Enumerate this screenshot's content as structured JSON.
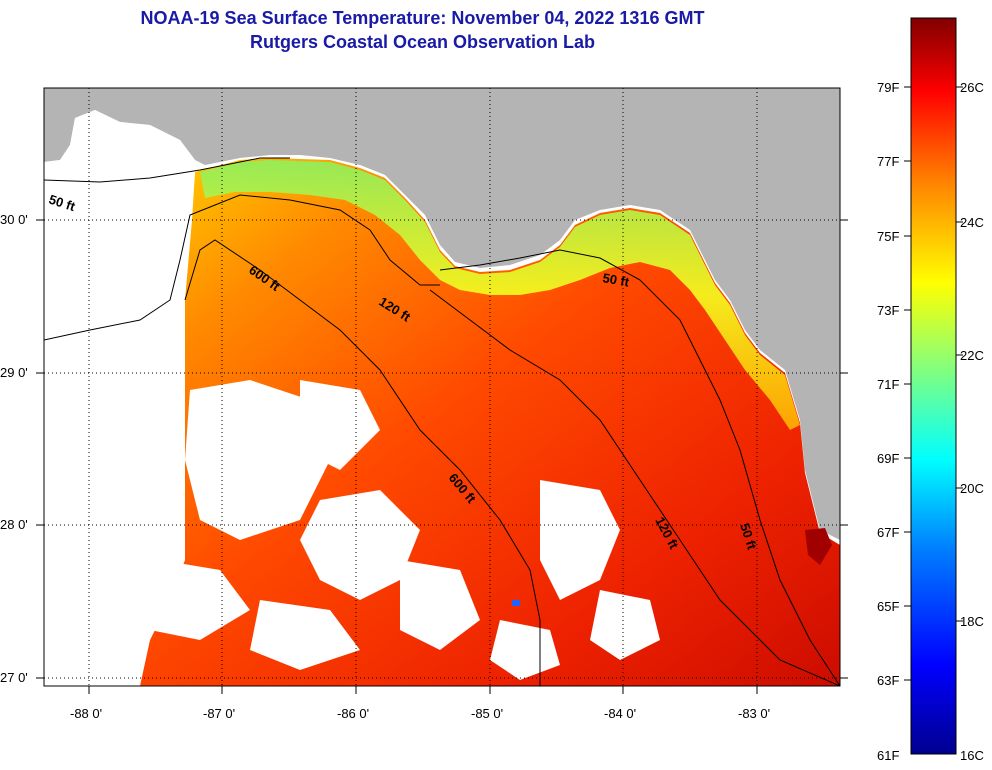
{
  "header": {
    "title": "NOAA-19 Sea Surface Temperature:  November 04, 2022 1316 GMT",
    "subtitle": "Rutgers Coastal Ocean Observation Lab"
  },
  "map": {
    "lon_ticks": [
      "-88 0'",
      "-87 0'",
      "-86 0'",
      "-85 0'",
      "-84 0'",
      "-83 0'"
    ],
    "lat_ticks": [
      "30 0'",
      "29 0'",
      "28 0'",
      "27 0'"
    ],
    "contours": [
      "50 ft",
      "600 ft",
      "120 ft",
      "50 ft",
      "600 ft",
      "120 ft",
      "50 ft"
    ],
    "land_color": "#b4b4b4",
    "nodata_color": "#ffffff"
  },
  "colorbar": {
    "fahrenheit": [
      "79F",
      "77F",
      "75F",
      "73F",
      "71F",
      "69F",
      "67F",
      "65F",
      "63F",
      "61F"
    ],
    "celsius": [
      "26C",
      "24C",
      "22C",
      "20C",
      "18C",
      "16C"
    ],
    "colors": [
      "#00008f",
      "#0000ff",
      "#0080ff",
      "#00ffff",
      "#80ff80",
      "#ffff00",
      "#ff8000",
      "#ff0000",
      "#800000"
    ]
  }
}
